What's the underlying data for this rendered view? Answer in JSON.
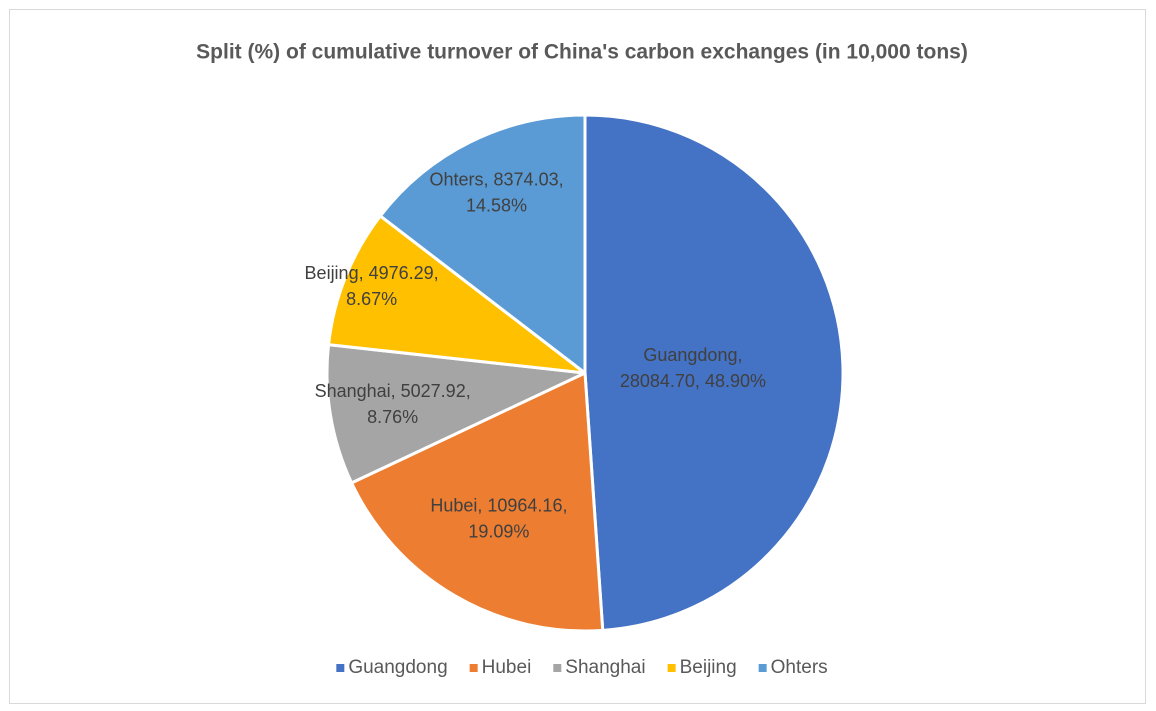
{
  "chart_data": {
    "type": "pie",
    "title": "Split (%) of cumulative turnover of China's carbon exchanges (in 10,000 tons)",
    "categories": [
      "Guangdong",
      "Hubei",
      "Shanghai",
      "Beijing",
      "Ohters"
    ],
    "values": [
      28084.7,
      10964.16,
      5027.92,
      4976.29,
      8374.03
    ],
    "value_labels": [
      [
        "Guangdong,",
        "28084.70, 48.90%"
      ],
      [
        "Hubei, 10964.16,",
        "19.09%"
      ],
      [
        "Shanghai, 5027.92,",
        "8.76%"
      ],
      [
        "Beijing, 4976.29,",
        "8.67%"
      ],
      [
        "Ohters, 8374.03,",
        "14.58%"
      ]
    ],
    "colors": [
      "#4472c4",
      "#ed7d31",
      "#a5a5a5",
      "#ffc000",
      "#5b9bd5"
    ],
    "legend": "bottom"
  }
}
